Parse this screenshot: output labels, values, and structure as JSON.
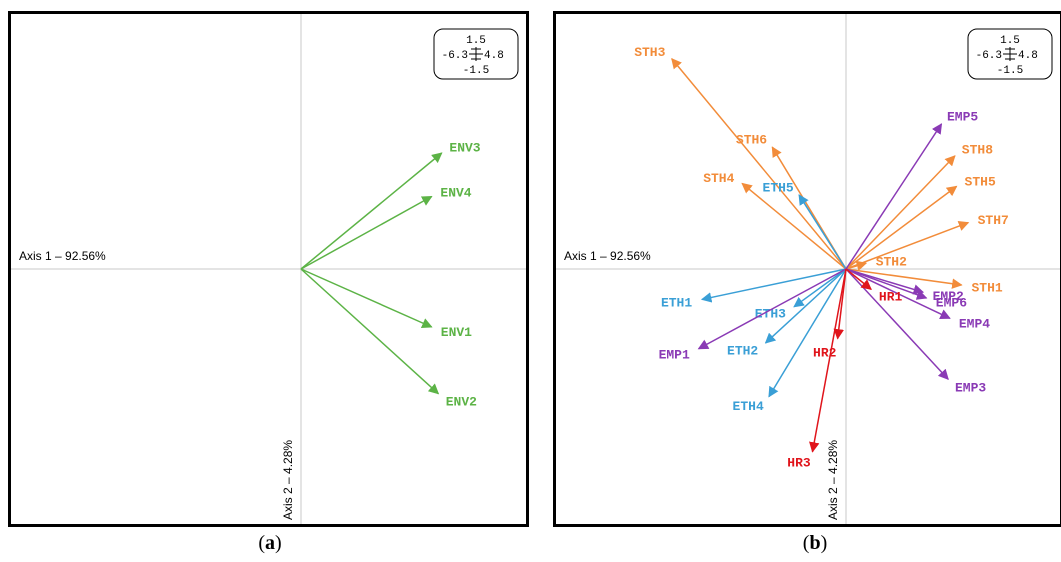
{
  "chart_data": [
    {
      "type": "biplot",
      "panel_caption": "a",
      "xlabel": "Axis 1 – 92.56%",
      "ylabel": "Axis 2 – 4.28%",
      "scale_box": {
        "top": "1.5",
        "left": "-6.3",
        "right": "4.8",
        "bottom": "-1.5"
      },
      "vectors": [
        {
          "name": "ENV3",
          "x": 4.2,
          "y": 0.8,
          "color": "#5cb346"
        },
        {
          "name": "ENV4",
          "x": 3.9,
          "y": 0.5,
          "color": "#5cb346"
        },
        {
          "name": "ENV1",
          "x": 3.9,
          "y": -0.4,
          "color": "#5cb346"
        },
        {
          "name": "ENV2",
          "x": 4.1,
          "y": -0.86,
          "color": "#5cb346"
        }
      ]
    },
    {
      "type": "biplot",
      "panel_caption": "b",
      "xlabel": "Axis 1 – 92.56%",
      "ylabel": "Axis 2 – 4.28%",
      "scale_box": {
        "top": "1.5",
        "left": "-6.3",
        "right": "4.8",
        "bottom": "-1.5"
      },
      "vectors": [
        {
          "name": "STH3",
          "x": -5.2,
          "y": 1.45,
          "color": "#f28c3a"
        },
        {
          "name": "STH6",
          "x": -2.2,
          "y": 0.84,
          "color": "#f28c3a"
        },
        {
          "name": "STH4",
          "x": -3.1,
          "y": 0.59,
          "color": "#f28c3a"
        },
        {
          "name": "STH8",
          "x": 3.25,
          "y": 0.78,
          "color": "#f28c3a"
        },
        {
          "name": "STH5",
          "x": 3.3,
          "y": 0.57,
          "color": "#f28c3a"
        },
        {
          "name": "STH7",
          "x": 3.65,
          "y": 0.32,
          "color": "#f28c3a"
        },
        {
          "name": "STH2",
          "x": 0.6,
          "y": 0.04,
          "color": "#f28c3a"
        },
        {
          "name": "STH1",
          "x": 3.45,
          "y": -0.11,
          "color": "#f28c3a"
        },
        {
          "name": "ETH5",
          "x": -1.4,
          "y": 0.51,
          "color": "#3a9fd6"
        },
        {
          "name": "ETH1",
          "x": -4.3,
          "y": -0.21,
          "color": "#3a9fd6"
        },
        {
          "name": "ETH3",
          "x": -1.55,
          "y": -0.26,
          "color": "#3a9fd6"
        },
        {
          "name": "ETH2",
          "x": -2.4,
          "y": -0.51,
          "color": "#3a9fd6"
        },
        {
          "name": "ETH4",
          "x": -2.3,
          "y": -0.88,
          "color": "#3a9fd6"
        },
        {
          "name": "EMP5",
          "x": 2.85,
          "y": 1.0,
          "color": "#8a3ab5"
        },
        {
          "name": "EMP2",
          "x": 2.3,
          "y": -0.16,
          "color": "#8a3ab5"
        },
        {
          "name": "EMP6",
          "x": 2.4,
          "y": -0.2,
          "color": "#8a3ab5"
        },
        {
          "name": "EMP4",
          "x": 3.1,
          "y": -0.34,
          "color": "#8a3ab5"
        },
        {
          "name": "EMP3",
          "x": 3.05,
          "y": -0.76,
          "color": "#8a3ab5"
        },
        {
          "name": "EMP1",
          "x": -4.4,
          "y": -0.55,
          "color": "#8a3ab5"
        },
        {
          "name": "HR1",
          "x": 0.75,
          "y": -0.14,
          "color": "#e0141b"
        },
        {
          "name": "HR2",
          "x": -0.25,
          "y": -0.48,
          "color": "#e0141b"
        },
        {
          "name": "HR3",
          "x": -1.0,
          "y": -1.26,
          "color": "#e0141b"
        }
      ]
    }
  ]
}
